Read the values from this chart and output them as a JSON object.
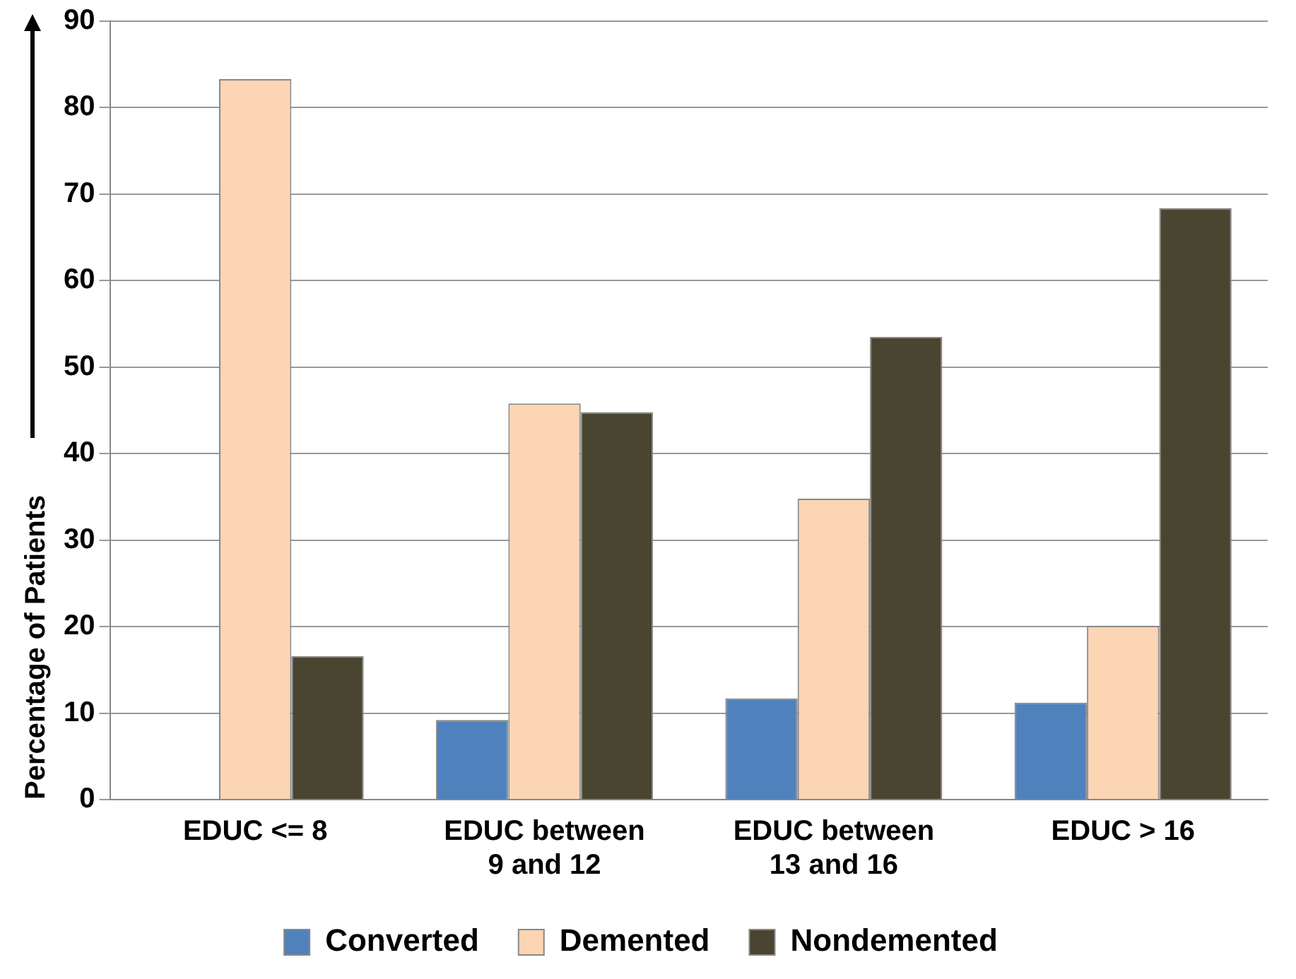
{
  "chart_data": {
    "type": "bar",
    "ylabel": "Percentage of Patients",
    "categories": [
      "EDUC <= 8",
      "EDUC between\n9 and 12",
      "EDUC between\n13 and 16",
      "EDUC > 16"
    ],
    "series": [
      {
        "name": "Converted",
        "color": "#4f81bd",
        "values": [
          0,
          9.2,
          11.7,
          11.2
        ]
      },
      {
        "name": "Demented",
        "color": "#fcd5b5",
        "values": [
          83.3,
          45.8,
          34.8,
          20.1
        ]
      },
      {
        "name": "Nondemented",
        "color": "#4a4530",
        "values": [
          16.6,
          44.8,
          53.5,
          68.4
        ]
      }
    ],
    "ylim": [
      0,
      90
    ],
    "yticks": [
      0,
      10,
      20,
      30,
      40,
      50,
      60,
      70,
      80,
      90
    ],
    "grid": "y",
    "legend": "bottom"
  }
}
